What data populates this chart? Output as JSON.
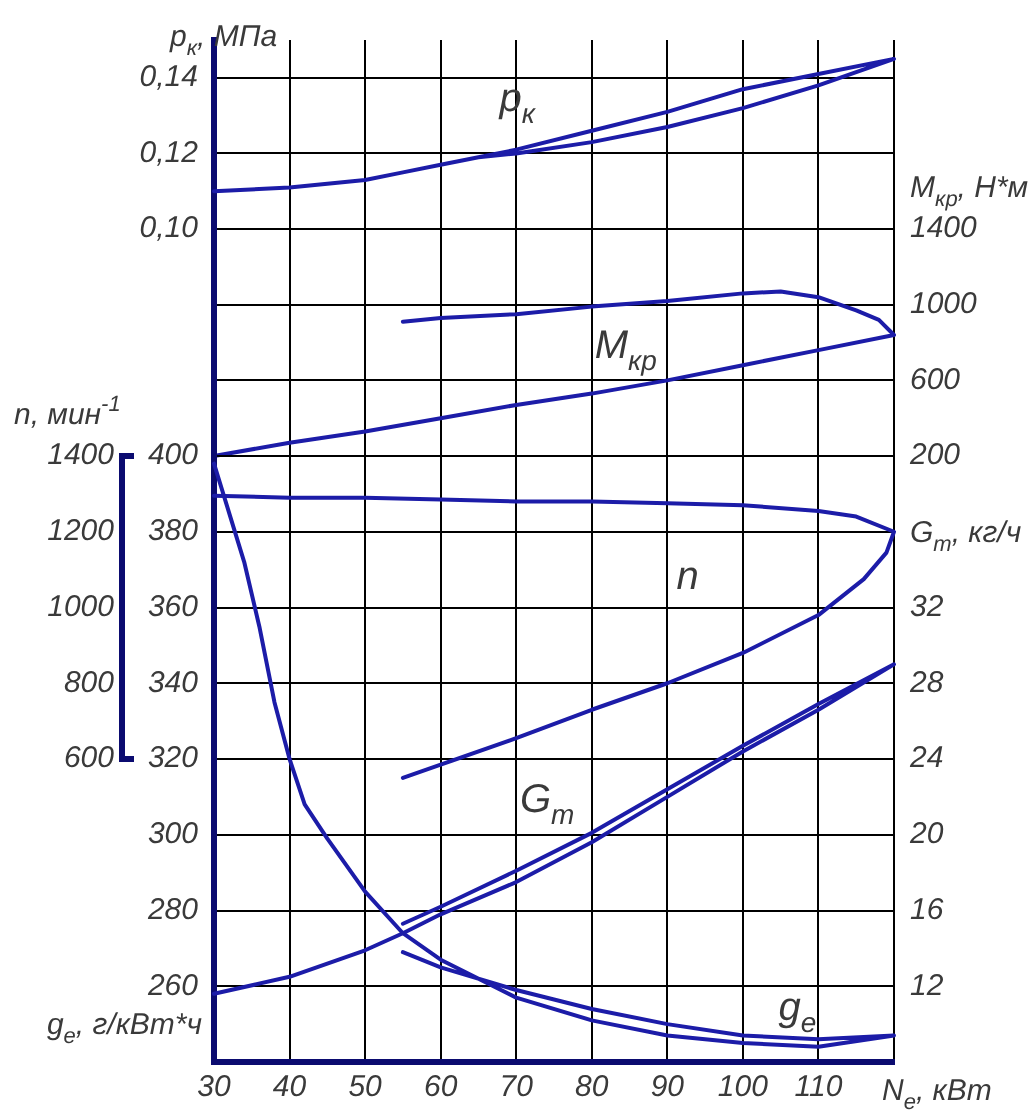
{
  "chart_data": [
    {
      "type": "line",
      "ylabel": "p$_{к}$, МПа",
      "y2label": "M$_{кр}$, Н*м",
      "xlim": [
        30,
        120
      ],
      "xticks": [
        30,
        40,
        50,
        60,
        70,
        80,
        90,
        100,
        110,
        120
      ],
      "ylim": [
        0.04,
        0.15
      ],
      "yticks": [
        {
          "value": 0.06,
          "label": null
        },
        {
          "value": 0.08,
          "label": null
        },
        {
          "value": 0.1,
          "label": "0,10"
        },
        {
          "value": 0.12,
          "label": "0,12"
        },
        {
          "value": 0.14,
          "label": "0,14"
        }
      ],
      "y2lim": [
        200,
        2400
      ],
      "y2ticks": [
        200,
        600,
        1000,
        1400
      ],
      "tick_labels": "y",
      "grid": true,
      "series": [
        {
          "name": "p$_{к}$",
          "color": "#1c1ca8",
          "x": [
            30,
            40,
            50,
            55,
            60,
            65,
            70,
            80,
            90,
            100,
            110,
            120,
            110,
            100,
            90,
            80,
            70,
            65
          ],
          "values": [
            0.11,
            0.111,
            0.113,
            0.115,
            0.117,
            0.119,
            0.121,
            0.126,
            0.131,
            0.137,
            0.141,
            0.145,
            0.138,
            0.132,
            0.127,
            0.123,
            0.12,
            0.119
          ]
        },
        {
          "name": "M$_{кр}$",
          "color": "#1c1ca8",
          "axis": "y2",
          "x": [
            55,
            60,
            70,
            80,
            90,
            100,
            105,
            110,
            115,
            118,
            120,
            110,
            100,
            90,
            80,
            70,
            60,
            50,
            40,
            30
          ],
          "values": [
            910,
            930,
            950,
            990,
            1020,
            1060,
            1070,
            1040,
            970,
            920,
            840,
            760,
            680,
            600,
            530,
            470,
            400,
            330,
            270,
            200
          ]
        }
      ]
    },
    {
      "type": "line",
      "xlabel": "N$_{е}$, кВт",
      "ylabel": "g$_{е}$, г/кВт*ч",
      "y2label": "G$_{т}$, кг/ч",
      "y3label": "n, мин$^{-1}$",
      "xlim": [
        30,
        120
      ],
      "xticks": [
        30,
        40,
        50,
        60,
        70,
        80,
        90,
        100,
        110,
        {
          "value": 120,
          "label": null
        }
      ],
      "ylim": [
        240,
        400
      ],
      "yticks": [
        260,
        280,
        300,
        320,
        340,
        360,
        380,
        400
      ],
      "y2lim": [
        8,
        40
      ],
      "y2ticks": [
        12,
        16,
        20,
        24,
        28,
        32
      ],
      "y3lim": [
        -200,
        1400
      ],
      "y3ticks": [
        600,
        800,
        1000,
        1200,
        1400
      ],
      "grid": true,
      "series": [
        {
          "name": "n",
          "color": "#1c1ca8",
          "axis": "y3",
          "x": [
            30,
            40,
            50,
            60,
            70,
            80,
            90,
            100,
            110,
            115,
            120,
            119,
            116,
            110,
            100,
            90,
            80,
            70,
            60,
            55
          ],
          "values": [
            1295,
            1290,
            1290,
            1285,
            1280,
            1280,
            1275,
            1270,
            1255,
            1240,
            1200,
            1145,
            1075,
            980,
            880,
            800,
            730,
            655,
            585,
            550
          ]
        },
        {
          "name": "G$_{т}$",
          "color": "#1c1ca8",
          "axis": "y2",
          "x": [
            55,
            60,
            70,
            80,
            90,
            100,
            110,
            120,
            110,
            100,
            90,
            80,
            70,
            60,
            55,
            50,
            40,
            30
          ],
          "values": [
            15.3,
            16.2,
            18.1,
            20.1,
            22.4,
            24.7,
            26.9,
            29.0,
            26.6,
            24.4,
            22.0,
            19.6,
            17.5,
            15.8,
            14.8,
            13.9,
            12.5,
            11.6
          ]
        },
        {
          "name": "g$_{е}$",
          "color": "#1c1ca8",
          "x": [
            55,
            60,
            70,
            80,
            90,
            100,
            110,
            120,
            110,
            100,
            90,
            80,
            70,
            60,
            55,
            50,
            45,
            42,
            40,
            38,
            36,
            34,
            32,
            30
          ],
          "values": [
            269,
            265,
            259,
            254,
            250,
            247,
            246,
            247,
            244,
            245,
            247,
            251,
            257,
            267,
            274,
            285,
            299,
            308,
            320,
            335,
            355,
            372,
            385,
            398
          ]
        }
      ]
    }
  ]
}
